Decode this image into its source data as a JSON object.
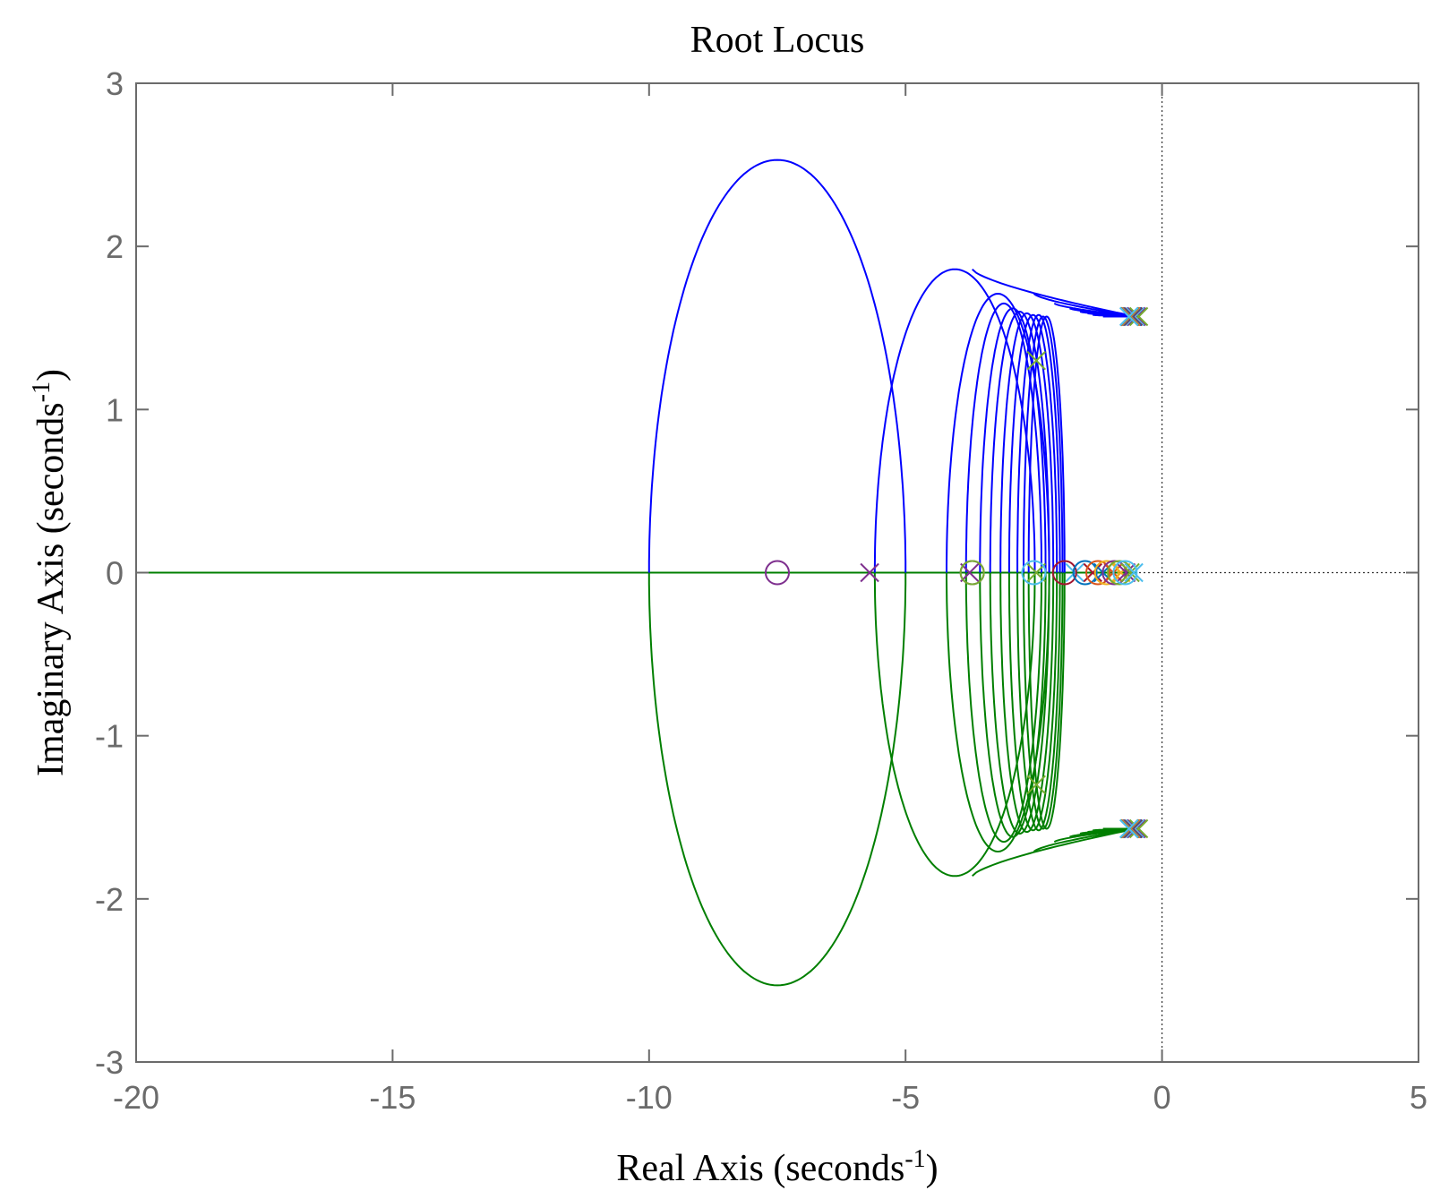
{
  "chart_data": {
    "type": "scatter",
    "subtype": "root-locus",
    "title": "Root Locus",
    "xlabel": "Real Axis (seconds",
    "xlabel_sup": "-1",
    "xlabel_suffix": ")",
    "ylabel": "Imaginary Axis (seconds",
    "ylabel_sup": "-1",
    "ylabel_suffix": ")",
    "xlim": [
      -20,
      5
    ],
    "ylim": [
      -3,
      3
    ],
    "xticks": [
      -20,
      -15,
      -10,
      -5,
      0,
      5
    ],
    "yticks": [
      -3,
      -2,
      -1,
      0,
      1,
      2,
      3
    ],
    "xtick_labels": [
      "-20",
      "-15",
      "-10",
      "-5",
      "0",
      "5"
    ],
    "ytick_labels": [
      "-3",
      "-2",
      "-1",
      "0",
      "1",
      "2",
      "3"
    ],
    "grid": false,
    "reference_lines": [
      {
        "orientation": "vertical",
        "value": 0,
        "style": "dotted"
      },
      {
        "orientation": "horizontal",
        "value": 0,
        "style": "dotted"
      }
    ],
    "colors": {
      "upper_branch": "#0000ff",
      "lower_branch": "#007f00",
      "axis": "#6b6b6b"
    },
    "loci": [
      {
        "x_left": -10.0,
        "x_right": -5.0,
        "center": -7.5,
        "peak": 2.53,
        "pole_x": -5.7,
        "zero_x": -7.5,
        "marker_color": "#7e2f8e"
      },
      {
        "x_left": -5.6,
        "x_right": -2.48,
        "center": -3.7,
        "peak": 1.86,
        "pole_x": -3.75,
        "zero_x": -3.7,
        "marker_color": "#7e2f8e"
      },
      {
        "x_left": -4.2,
        "x_right": -2.2,
        "center": -2.5,
        "peak": 1.71,
        "pole_x": -2.45,
        "zero_x": -3.7,
        "marker_color": "#77ac30"
      },
      {
        "x_left": -3.82,
        "x_right": -2.35,
        "center": -2.1,
        "peak": 1.65,
        "pole_x": -1.7,
        "zero_x": -2.5,
        "marker_color": "#4dbeee"
      },
      {
        "x_left": -3.55,
        "x_right": -2.27,
        "center": -1.8,
        "peak": 1.62,
        "pole_x": -1.35,
        "zero_x": -1.9,
        "marker_color": "#a2142f"
      },
      {
        "x_left": -3.35,
        "x_right": -2.2,
        "center": -1.6,
        "peak": 1.6,
        "pole_x": -1.15,
        "zero_x": -1.5,
        "marker_color": "#0072bd"
      },
      {
        "x_left": -3.15,
        "x_right": -2.12,
        "center": -1.45,
        "peak": 1.59,
        "pole_x": -0.95,
        "zero_x": -1.25,
        "marker_color": "#d95319"
      },
      {
        "x_left": -2.98,
        "x_right": -2.05,
        "center": -1.35,
        "peak": 1.58,
        "pole_x": -0.8,
        "zero_x": -1.08,
        "marker_color": "#edb120"
      },
      {
        "x_left": -2.82,
        "x_right": -1.99,
        "center": -1.25,
        "peak": 1.58,
        "pole_x": -0.7,
        "zero_x": -0.93,
        "marker_color": "#7e2f8e"
      },
      {
        "x_left": -2.7,
        "x_right": -1.94,
        "center": -1.15,
        "peak": 1.57,
        "pole_x": -0.62,
        "zero_x": -0.83,
        "marker_color": "#77ac30"
      },
      {
        "x_left": -2.6,
        "x_right": -1.9,
        "center": -1.05,
        "peak": 1.57,
        "pole_x": -0.55,
        "zero_x": -0.72,
        "marker_color": "#4dbeee"
      }
    ],
    "real_axis_branch": {
      "from": -20,
      "to": -0.5
    },
    "x_markers_mid": [
      {
        "x": -2.45,
        "y": 1.3,
        "color": "#77ac30"
      },
      {
        "x": -2.45,
        "y": -1.3,
        "color": "#77ac30"
      }
    ]
  }
}
